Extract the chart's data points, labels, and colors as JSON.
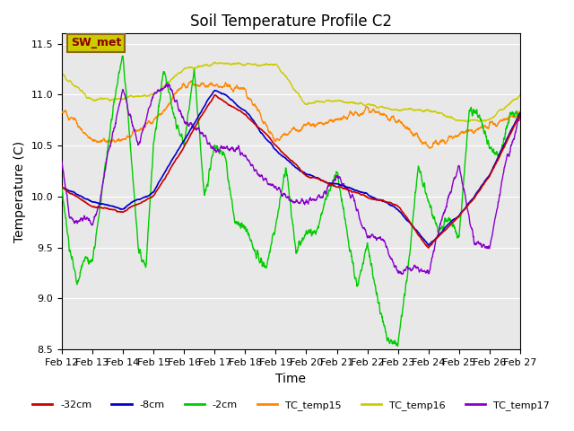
{
  "title": "Soil Temperature Profile C2",
  "xlabel": "Time",
  "ylabel": "Temperature (C)",
  "ylim": [
    8.5,
    11.6
  ],
  "xlim": [
    0,
    360
  ],
  "x_tick_labels": [
    "Feb 12",
    "Feb 13",
    "Feb 14",
    "Feb 15",
    "Feb 16",
    "Feb 17",
    "Feb 18",
    "Feb 19",
    "Feb 20",
    "Feb 21",
    "Feb 22",
    "Feb 23",
    "Feb 24",
    "Feb 25",
    "Feb 26",
    "Feb 27"
  ],
  "x_tick_positions": [
    0,
    24,
    48,
    72,
    96,
    120,
    144,
    168,
    192,
    216,
    240,
    264,
    288,
    312,
    336,
    360
  ],
  "y_ticks": [
    8.5,
    9.0,
    9.5,
    10.0,
    10.5,
    11.0,
    11.5
  ],
  "colors": {
    "neg32cm": "#cc0000",
    "neg8cm": "#0000cc",
    "neg2cm": "#00cc00",
    "TC_temp15": "#ff8800",
    "TC_temp16": "#cccc00",
    "TC_temp17": "#8800cc"
  },
  "legend_label": "SW_met",
  "legend_box_color": "#cccc00",
  "legend_text_color": "#8b0000",
  "background_color": "#e8e8e8",
  "title_fontsize": 12,
  "axis_fontsize": 10,
  "tick_fontsize": 8
}
